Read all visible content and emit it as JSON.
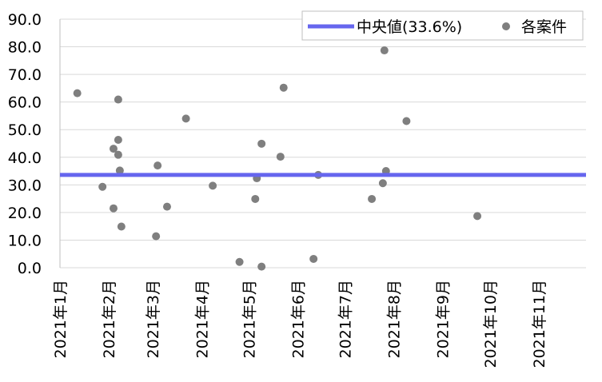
{
  "chart_data": {
    "type": "scatter",
    "title": "",
    "xlabel": "",
    "ylabel": "",
    "ylim": [
      0,
      90
    ],
    "y_ticks": [
      "0.0",
      "10.0",
      "20.0",
      "30.0",
      "40.0",
      "50.0",
      "60.0",
      "70.0",
      "80.0",
      "90.0"
    ],
    "x_ticks": [
      "2021年1月",
      "2021年2月",
      "2021年3月",
      "2021年4月",
      "2021年5月",
      "2021年6月",
      "2021年7月",
      "2021年8月",
      "2021年9月",
      "2021年10月",
      "2021年11月"
    ],
    "x_range": [
      "2021-01-01",
      "2021-12-01"
    ],
    "grid": "horizontal",
    "legend_position": "top-right",
    "median": {
      "label": "中央値(33.6%)",
      "value": 33.6,
      "color": "#6666ee"
    },
    "points_series": {
      "label": "各案件",
      "color": "#7f7f7f"
    },
    "points": [
      {
        "x": "2021-01-12",
        "y": 63.2
      },
      {
        "x": "2021-01-28",
        "y": 29.3
      },
      {
        "x": "2021-02-04",
        "y": 43.1
      },
      {
        "x": "2021-02-04",
        "y": 21.5
      },
      {
        "x": "2021-02-07",
        "y": 60.9
      },
      {
        "x": "2021-02-07",
        "y": 46.3
      },
      {
        "x": "2021-02-07",
        "y": 40.9
      },
      {
        "x": "2021-02-08",
        "y": 35.2
      },
      {
        "x": "2021-02-09",
        "y": 14.9
      },
      {
        "x": "2021-03-03",
        "y": 11.4
      },
      {
        "x": "2021-03-04",
        "y": 37.0
      },
      {
        "x": "2021-03-10",
        "y": 22.1
      },
      {
        "x": "2021-03-22",
        "y": 54.0
      },
      {
        "x": "2021-04-08",
        "y": 29.7
      },
      {
        "x": "2021-04-25",
        "y": 2.1
      },
      {
        "x": "2021-05-05",
        "y": 24.9
      },
      {
        "x": "2021-05-06",
        "y": 32.4
      },
      {
        "x": "2021-05-09",
        "y": 0.4
      },
      {
        "x": "2021-05-09",
        "y": 44.9
      },
      {
        "x": "2021-05-21",
        "y": 40.2
      },
      {
        "x": "2021-05-23",
        "y": 65.2
      },
      {
        "x": "2021-06-11",
        "y": 3.2
      },
      {
        "x": "2021-06-14",
        "y": 33.6
      },
      {
        "x": "2021-07-18",
        "y": 24.9
      },
      {
        "x": "2021-07-25",
        "y": 30.6
      },
      {
        "x": "2021-07-26",
        "y": 78.7
      },
      {
        "x": "2021-07-27",
        "y": 35.0
      },
      {
        "x": "2021-08-09",
        "y": 53.1
      },
      {
        "x": "2021-09-23",
        "y": 18.7
      }
    ]
  }
}
